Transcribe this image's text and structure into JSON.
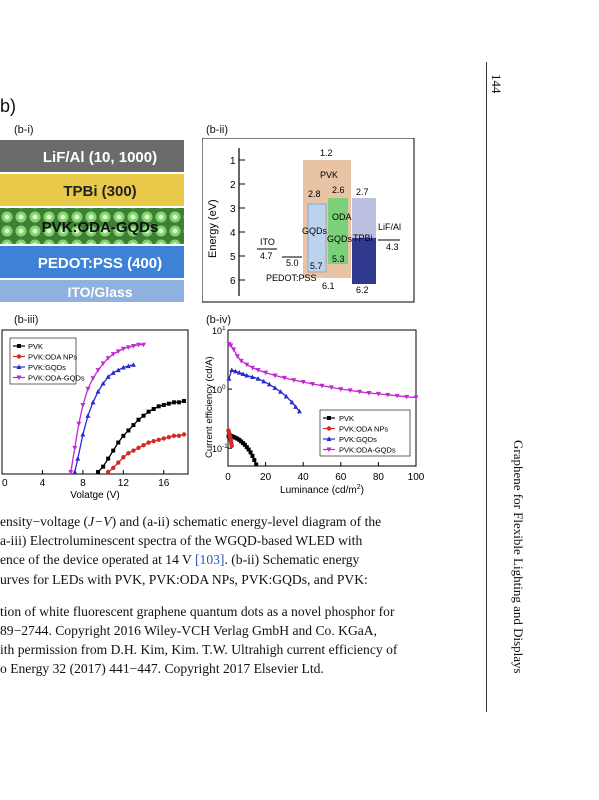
{
  "page": {
    "number": "144",
    "running_title": "Graphene for Flexible Lighting and Displays",
    "figure_part": "b)"
  },
  "panels": {
    "bi": {
      "label": "(b-i)",
      "layers": [
        {
          "text": "LiF/Al (10, 1000)",
          "color": "#6b6b6b"
        },
        {
          "text": "TPBi (300)",
          "color": "#e8c94a"
        },
        {
          "text": "PVK:ODA-GQDs",
          "color": "#4a8a3c"
        },
        {
          "text": "PEDOT:PSS (400)",
          "color": "#3d82d6"
        },
        {
          "text": "ITO/Glass",
          "color": "#8fb1e0"
        }
      ]
    },
    "bii": {
      "label": "(b-ii)",
      "ylabel": "Energy (eV)",
      "ticks": [
        "1",
        "2",
        "3",
        "4",
        "5",
        "6"
      ],
      "labels": {
        "ito": "ITO",
        "ito_val": "4.7",
        "pedot_val": "5.0",
        "pedot": "PEDOT:PSS",
        "pvk_top": "1.2",
        "pvk": "PVK",
        "pvk_lumo": "2.8",
        "pvk_homo": "5.7",
        "gqd": "GQDs",
        "oda_lumo": "2.6",
        "oda": "ODA",
        "oda_gqd": "GQDs",
        "oda_homo": "5.3",
        "layer_homo": "6.1",
        "tpbi_lumo": "2.7",
        "tpbi": "TPBi",
        "tpbi_homo": "6.2",
        "lif": "LiF/Al",
        "lif_val": "4.3"
      }
    },
    "biii": {
      "label": "(b-iii)",
      "chart_data": {
        "type": "line",
        "xlabel": "Volatge (V)",
        "x_ticks": [
          "0",
          "4",
          "8",
          "12",
          "16"
        ],
        "xlim": [
          0,
          18
        ],
        "series": [
          {
            "name": "PVK",
            "color": "#000000",
            "x": [
              9.5,
              10,
              10.5,
              11,
              11.5,
              12,
              12.5,
              13,
              13.5,
              14,
              14.5,
              15,
              15.5,
              16,
              16.5,
              17,
              17.5,
              18
            ],
            "y": [
              0.0,
              0.04,
              0.1,
              0.16,
              0.22,
              0.27,
              0.31,
              0.35,
              0.39,
              0.42,
              0.45,
              0.47,
              0.49,
              0.5,
              0.51,
              0.52,
              0.52,
              0.53
            ]
          },
          {
            "name": "PVK:ODA NPs",
            "color": "#d02a2a",
            "x": [
              10.5,
              11,
              11.5,
              12,
              12.5,
              13,
              13.5,
              14,
              14.5,
              15,
              15.5,
              16,
              16.5,
              17,
              17.5,
              18
            ],
            "y": [
              0.0,
              0.03,
              0.07,
              0.11,
              0.14,
              0.16,
              0.18,
              0.2,
              0.22,
              0.23,
              0.24,
              0.25,
              0.26,
              0.27,
              0.27,
              0.28
            ]
          },
          {
            "name": "PVK:GQDs",
            "color": "#2a2ad0",
            "x": [
              7.2,
              7.5,
              8,
              8.5,
              9,
              9.5,
              10,
              10.5,
              11,
              11.5,
              12,
              12.5,
              13
            ],
            "y": [
              0.0,
              0.1,
              0.28,
              0.42,
              0.52,
              0.6,
              0.66,
              0.71,
              0.74,
              0.76,
              0.78,
              0.79,
              0.8
            ]
          },
          {
            "name": "PVK:ODA-GQDs",
            "color": "#c02ad0",
            "x": [
              6.8,
              7.2,
              7.6,
              8,
              8.5,
              9,
              9.5,
              10,
              10.5,
              11,
              11.5,
              12,
              12.5,
              13,
              13.5,
              14
            ],
            "y": [
              0.0,
              0.18,
              0.36,
              0.5,
              0.62,
              0.7,
              0.76,
              0.81,
              0.85,
              0.88,
              0.9,
              0.92,
              0.93,
              0.94,
              0.95,
              0.95
            ]
          }
        ]
      }
    },
    "biv": {
      "label": "(b-iv)",
      "chart_data": {
        "type": "line",
        "xlabel": "Luminance (cd/m",
        "xlabel_sup": "2",
        "xlabel_end": ")",
        "ylabel": "Current efficiency (cd/A)",
        "x_ticks": [
          "0",
          "20",
          "40",
          "60",
          "80",
          "100"
        ],
        "xlim": [
          0,
          100
        ],
        "y_log": true,
        "ylim": [
          0.05,
          10
        ],
        "y_ticks": [
          {
            "base": "10",
            "exp": "1",
            "v": 10
          },
          {
            "base": "10",
            "exp": "0",
            "v": 1
          },
          {
            "base": "10",
            "exp": "-1",
            "v": 0.1
          }
        ],
        "series": [
          {
            "name": "PVK",
            "color": "#000000",
            "x": [
              0.3,
              1,
              2,
              3,
              4,
              5,
              6,
              7,
              8,
              9,
              10,
              11,
              12,
              13,
              14,
              15
            ],
            "y": [
              0.16,
              0.165,
              0.16,
              0.155,
              0.15,
              0.145,
              0.138,
              0.13,
              0.122,
              0.114,
              0.104,
              0.095,
              0.085,
              0.074,
              0.063,
              0.053
            ]
          },
          {
            "name": "PVK:ODA NPs",
            "color": "#d02a2a",
            "x": [
              0.2,
              0.4,
              0.6,
              0.8,
              1.0,
              1.2,
              1.4,
              1.6,
              1.8,
              2.0
            ],
            "y": [
              0.2,
              0.19,
              0.18,
              0.17,
              0.16,
              0.15,
              0.14,
              0.13,
              0.12,
              0.11
            ]
          },
          {
            "name": "PVK:GQDs",
            "color": "#2a2ad0",
            "x": [
              0.5,
              2,
              4,
              6,
              8,
              10,
              13,
              16,
              19,
              22,
              25,
              28,
              31,
              34,
              36,
              38
            ],
            "y": [
              1.5,
              2.1,
              2.0,
              1.9,
              1.8,
              1.7,
              1.6,
              1.5,
              1.35,
              1.2,
              1.05,
              0.9,
              0.75,
              0.6,
              0.5,
              0.42
            ]
          },
          {
            "name": "PVK:ODA-GQDs",
            "color": "#c02ad0",
            "x": [
              0.5,
              1.5,
              3,
              5,
              7,
              10,
              13,
              16,
              20,
              25,
              30,
              35,
              40,
              45,
              50,
              55,
              60,
              65,
              70,
              75,
              80,
              85,
              90,
              95,
              100
            ],
            "y": [
              5.8,
              5.5,
              4.7,
              3.6,
              3.0,
              2.6,
              2.3,
              2.1,
              1.9,
              1.7,
              1.55,
              1.42,
              1.32,
              1.22,
              1.14,
              1.07,
              1.0,
              0.95,
              0.9,
              0.86,
              0.83,
              0.8,
              0.77,
              0.74,
              0.72
            ]
          }
        ]
      }
    }
  },
  "caption": {
    "l1a": "ensity−voltage (",
    "l1b": "J−V",
    "l1c": ") and (a-ii) schematic energy-level diagram of the",
    "l2": "a-iii) Electroluminescent spectra of the WGQD-based WLED with",
    "l3a": "ence of the device operated at 14 V ",
    "l3ref": "[103]",
    "l3b": ". (b-ii) Schematic energy",
    "l4": "urves for LEDs with PVK, PVK:ODA NPs, PVK:GQDs, and PVK:",
    "l5": "tion of white fluorescent graphene quantum dots as a novel phosphor for",
    "l6": "89−2744. Copyright 2016 Wiley-VCH Verlag GmbH and Co. KGaA,",
    "l7": "ith permission from D.H. Kim, Kim. T.W. Ultrahigh current efficiency of",
    "l8": "o Energy 32 (2017) 441−447. Copyright 2017 Elsevier Ltd."
  }
}
